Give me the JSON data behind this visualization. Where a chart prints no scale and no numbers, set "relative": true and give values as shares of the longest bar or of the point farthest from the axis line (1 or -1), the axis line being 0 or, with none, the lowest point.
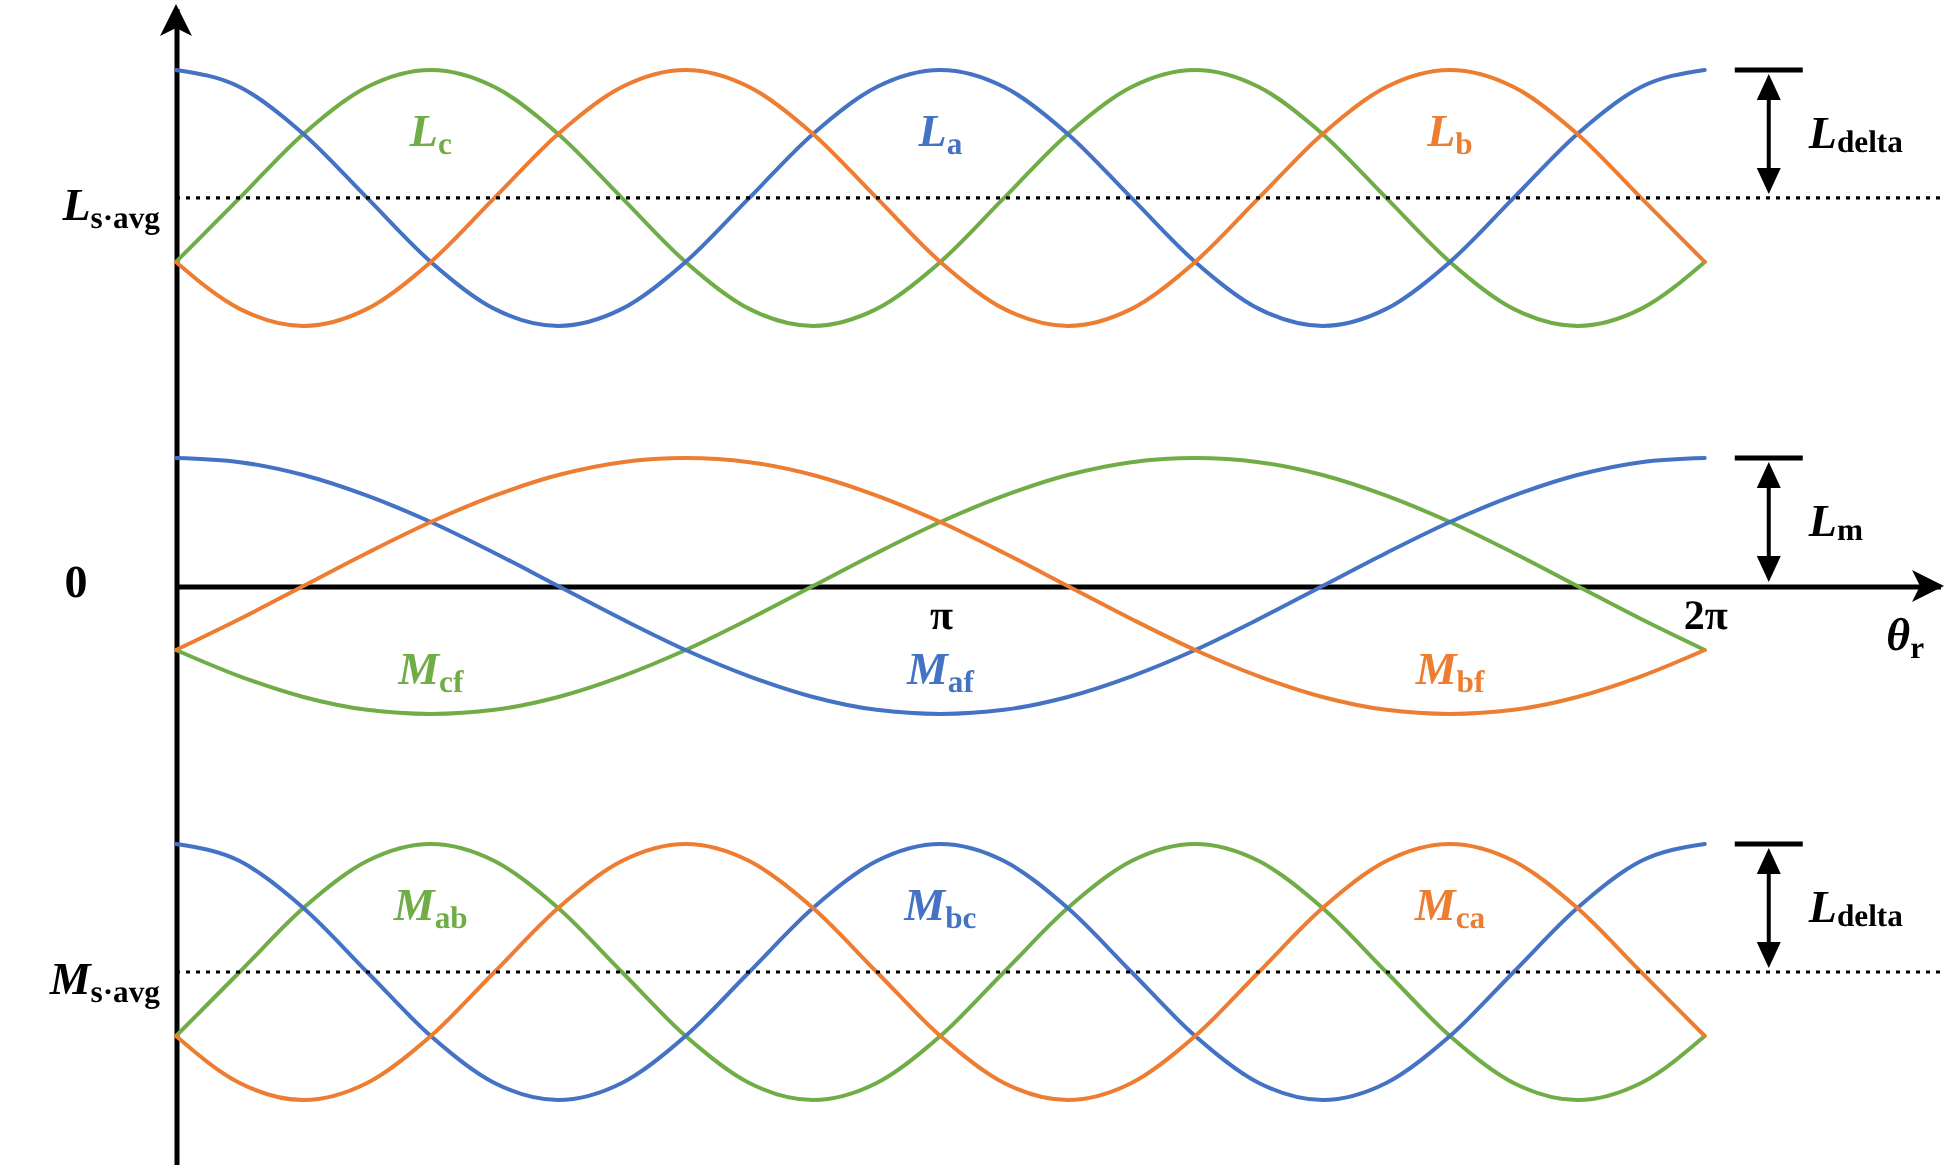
{
  "chart_data": {
    "type": "line",
    "relative": true,
    "x": [
      0,
      0.2618,
      0.5236,
      0.7854,
      1.0472,
      1.309,
      1.5708,
      1.8326,
      2.0944,
      2.3562,
      2.618,
      2.8798,
      3.1416,
      3.4034,
      3.6652,
      3.927,
      4.1888,
      4.4506,
      4.7124,
      4.9742,
      5.236,
      5.4978,
      5.7596,
      6.0214,
      6.2832
    ],
    "xlim": [
      0,
      7.25
    ],
    "xticks": [
      {
        "value": 3.1416,
        "label": "π"
      },
      {
        "value": 6.2832,
        "label": "2π"
      }
    ],
    "xlabel": "θ$_{r}$",
    "series": [
      {
        "name": "L$_{c}$",
        "color": "#70ad47",
        "values": [
          0.628,
          0.752,
          0.876,
          0.967,
          1.0,
          0.967,
          0.876,
          0.752,
          0.628,
          0.537,
          0.504,
          0.537,
          0.628,
          0.752,
          0.876,
          0.967,
          1.0,
          0.967,
          0.876,
          0.752,
          0.628,
          0.537,
          0.504,
          0.537,
          0.628
        ]
      },
      {
        "name": "L$_{a}$",
        "color": "#4472c4",
        "values": [
          1.0,
          0.967,
          0.876,
          0.752,
          0.628,
          0.537,
          0.504,
          0.537,
          0.628,
          0.752,
          0.876,
          0.967,
          1.0,
          0.967,
          0.876,
          0.752,
          0.628,
          0.537,
          0.504,
          0.537,
          0.628,
          0.752,
          0.876,
          0.967,
          1.0
        ]
      },
      {
        "name": "L$_{b}$",
        "color": "#ed7d31",
        "values": [
          0.628,
          0.537,
          0.504,
          0.537,
          0.628,
          0.752,
          0.876,
          0.967,
          1.0,
          0.967,
          0.876,
          0.752,
          0.628,
          0.537,
          0.504,
          0.537,
          0.628,
          0.752,
          0.876,
          0.967,
          1.0,
          0.967,
          0.876,
          0.752,
          0.628
        ]
      },
      {
        "name": "M$_{cf}$",
        "color": "#70ad47",
        "values": [
          -0.124,
          -0.175,
          -0.215,
          -0.24,
          -0.248,
          -0.24,
          -0.215,
          -0.175,
          -0.124,
          -0.064,
          0,
          0.064,
          0.124,
          0.175,
          0.215,
          0.24,
          0.248,
          0.24,
          0.215,
          0.175,
          0.124,
          0.064,
          0,
          -0.064,
          -0.124
        ]
      },
      {
        "name": "M$_{af}$",
        "color": "#4472c4",
        "values": [
          0.248,
          0.24,
          0.215,
          0.175,
          0.124,
          0.064,
          0,
          -0.064,
          -0.124,
          -0.175,
          -0.215,
          -0.24,
          -0.248,
          -0.24,
          -0.215,
          -0.175,
          -0.124,
          -0.064,
          0,
          0.064,
          0.124,
          0.175,
          0.215,
          0.24,
          0.248
        ]
      },
      {
        "name": "M$_{bf}$",
        "color": "#ed7d31",
        "values": [
          -0.124,
          -0.064,
          0,
          0.064,
          0.124,
          0.175,
          0.215,
          0.24,
          0.248,
          0.24,
          0.215,
          0.175,
          0.124,
          0.064,
          0,
          -0.064,
          -0.124,
          -0.175,
          -0.215,
          -0.24,
          -0.248,
          -0.24,
          -0.215,
          -0.175,
          -0.124
        ]
      },
      {
        "name": "M$_{ab}$",
        "color": "#70ad47",
        "values": [
          -0.872,
          -0.748,
          -0.624,
          -0.533,
          -0.5,
          -0.533,
          -0.624,
          -0.748,
          -0.872,
          -0.963,
          -0.996,
          -0.963,
          -0.872,
          -0.748,
          -0.624,
          -0.533,
          -0.5,
          -0.533,
          -0.624,
          -0.748,
          -0.872,
          -0.963,
          -0.996,
          -0.963,
          -0.872
        ]
      },
      {
        "name": "M$_{bc}$",
        "color": "#4472c4",
        "values": [
          -0.5,
          -0.533,
          -0.624,
          -0.748,
          -0.872,
          -0.963,
          -0.996,
          -0.963,
          -0.872,
          -0.748,
          -0.624,
          -0.533,
          -0.5,
          -0.533,
          -0.624,
          -0.748,
          -0.872,
          -0.963,
          -0.996,
          -0.963,
          -0.872,
          -0.748,
          -0.624,
          -0.533,
          -0.5
        ]
      },
      {
        "name": "M$_{ca}$",
        "color": "#ed7d31",
        "values": [
          -0.872,
          -0.963,
          -0.996,
          -0.963,
          -0.872,
          -0.748,
          -0.624,
          -0.533,
          -0.5,
          -0.533,
          -0.624,
          -0.748,
          -0.872,
          -0.963,
          -0.996,
          -0.963,
          -0.872,
          -0.748,
          -0.624,
          -0.533,
          -0.5,
          -0.533,
          -0.624,
          -0.748,
          -0.872
        ]
      }
    ],
    "ref_lines": [
      {
        "axis": "y",
        "value": 0.752,
        "label": "L$_{s·avg}$",
        "line_style": "dotted"
      },
      {
        "axis": "y",
        "value": -0.748,
        "label": "M$_{s·avg}$",
        "line_style": "dotted"
      }
    ],
    "annotations": [
      "0",
      "L$_{delta}$",
      "L$_{m}$",
      "L$_{delta}$"
    ],
    "grid": false,
    "marker": "none",
    "line_style": "solid"
  }
}
